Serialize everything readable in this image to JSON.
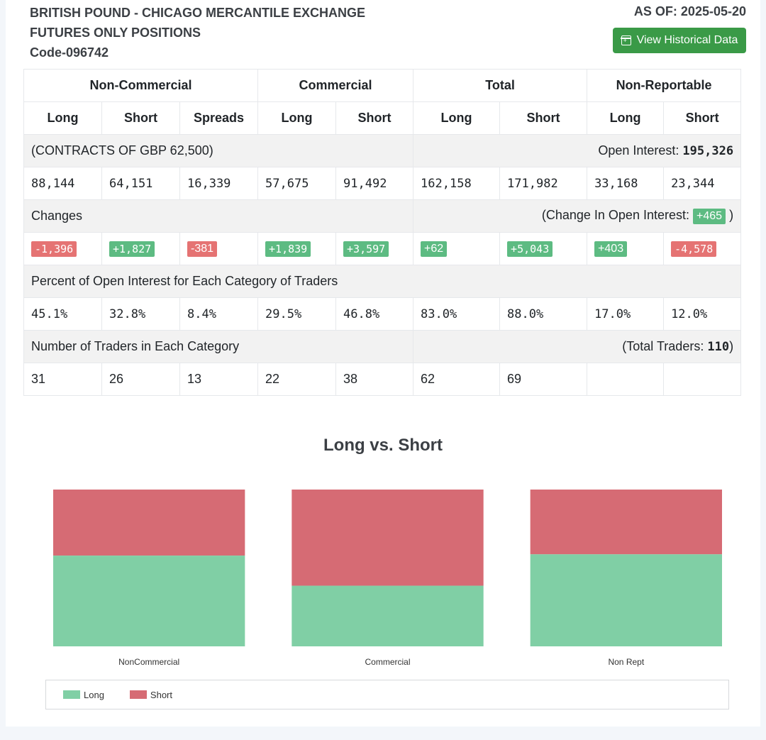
{
  "header": {
    "title_line1": "BRITISH POUND - CHICAGO MERCANTILE EXCHANGE",
    "title_line2": "FUTURES ONLY POSITIONS",
    "code": "Code-096742",
    "as_of": "AS OF: 2025-05-20",
    "history_button": "View Historical Data"
  },
  "table": {
    "groups": [
      "Non-Commercial",
      "Commercial",
      "Total",
      "Non-Reportable"
    ],
    "columns": [
      "Long",
      "Short",
      "Spreads",
      "Long",
      "Short",
      "Long",
      "Short",
      "Long",
      "Short"
    ],
    "contracts_label": "(CONTRACTS OF GBP 62,500)",
    "open_interest_label": "Open Interest:",
    "open_interest": "195,326",
    "positions": [
      "88,144",
      "64,151",
      "16,339",
      "57,675",
      "91,492",
      "162,158",
      "171,982",
      "33,168",
      "23,344"
    ],
    "changes_label": "Changes",
    "change_oi_prefix": "(Change In Open Interest:",
    "change_oi": "+465",
    "change_oi_suffix": ")",
    "changes": [
      "-1,396",
      "+1,827",
      "-381",
      "+1,839",
      "+3,597",
      "+62",
      "+5,043",
      "+403",
      "-4,578"
    ],
    "percent_label": "Percent of Open Interest for Each Category of Traders",
    "percents": [
      "45.1%",
      "32.8%",
      "8.4%",
      "29.5%",
      "46.8%",
      "83.0%",
      "88.0%",
      "17.0%",
      "12.0%"
    ],
    "traders_label": "Number of Traders in Each Category",
    "total_traders_prefix": "(Total Traders:",
    "total_traders": "110",
    "total_traders_suffix": ")",
    "traders": [
      "31",
      "26",
      "13",
      "22",
      "38",
      "62",
      "69",
      "",
      ""
    ]
  },
  "colors": {
    "long": "#80cfa5",
    "short": "#d66b74",
    "positive": "#5dbb82",
    "negative": "#e57373",
    "button": "#3a9a47"
  },
  "chart_data": {
    "type": "bar",
    "stacked": true,
    "normalized": true,
    "title": "Long vs. Short",
    "categories": [
      "NonCommercial",
      "Commercial",
      "Non Rept"
    ],
    "series": [
      {
        "name": "Long",
        "values": [
          88144,
          57675,
          33168
        ]
      },
      {
        "name": "Short",
        "values": [
          64151,
          91492,
          23344
        ]
      }
    ],
    "legend": "bottom"
  }
}
